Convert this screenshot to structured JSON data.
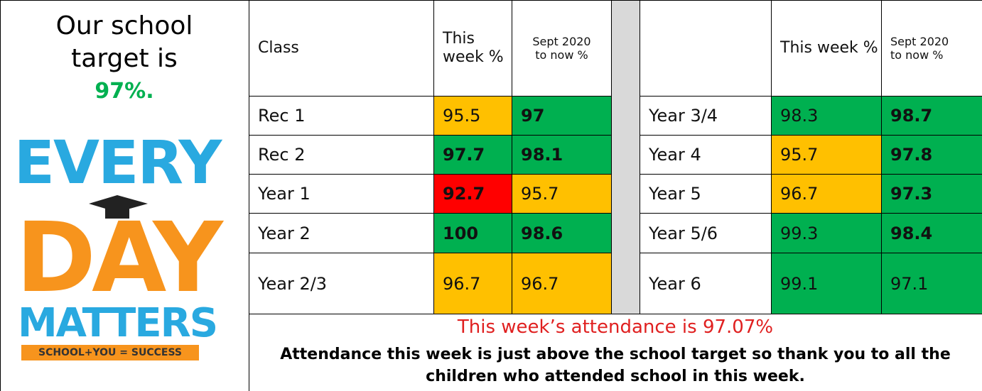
{
  "target": {
    "line1": "Our school",
    "line2": "target is",
    "value": "97%."
  },
  "logo": {
    "every": "EVERY",
    "day": "DAY",
    "matters": "MATTERS",
    "tagline": "SCHOOL+YOU = SUCCESS"
  },
  "table": {
    "left_headers": [
      "Class",
      "This week %",
      "Sept 2020 to now %"
    ],
    "right_headers": [
      "This week %",
      "Sept 2020 to now %"
    ],
    "colors": {
      "green": "#00b050",
      "amber": "#ffc000",
      "red": "#ff0000"
    },
    "left_rows": [
      {
        "class": "Rec 1",
        "week": {
          "value": 95.5,
          "color": "amber",
          "bold": false
        },
        "sept": {
          "value": 97,
          "color": "green",
          "bold": true
        }
      },
      {
        "class": "Rec 2",
        "week": {
          "value": 97.7,
          "color": "green",
          "bold": true
        },
        "sept": {
          "value": 98.1,
          "color": "green",
          "bold": true
        }
      },
      {
        "class": "Year 1",
        "week": {
          "value": 92.7,
          "color": "red",
          "bold": true
        },
        "sept": {
          "value": 95.7,
          "color": "amber",
          "bold": false
        }
      },
      {
        "class": "Year 2",
        "week": {
          "value": 100,
          "color": "green",
          "bold": true
        },
        "sept": {
          "value": 98.6,
          "color": "green",
          "bold": true
        }
      },
      {
        "class": "Year 2/3",
        "week": {
          "value": 96.7,
          "color": "amber",
          "bold": false
        },
        "sept": {
          "value": 96.7,
          "color": "amber",
          "bold": false
        }
      }
    ],
    "right_rows": [
      {
        "class": "Year 3/4",
        "week": {
          "value": 98.3,
          "color": "green",
          "bold": false
        },
        "sept": {
          "value": 98.7,
          "color": "green",
          "bold": true
        }
      },
      {
        "class": "Year 4",
        "week": {
          "value": 95.7,
          "color": "amber",
          "bold": false
        },
        "sept": {
          "value": 97.8,
          "color": "green",
          "bold": true
        }
      },
      {
        "class": "Year 5",
        "week": {
          "value": 96.7,
          "color": "amber",
          "bold": false
        },
        "sept": {
          "value": 97.3,
          "color": "green",
          "bold": true
        }
      },
      {
        "class": "Year 5/6",
        "week": {
          "value": 99.3,
          "color": "green",
          "bold": false
        },
        "sept": {
          "value": 98.4,
          "color": "green",
          "bold": true
        }
      },
      {
        "class": "Year 6",
        "week": {
          "value": 99.1,
          "color": "green",
          "bold": false
        },
        "sept": {
          "value": 97.1,
          "color": "green",
          "bold": false
        }
      }
    ]
  },
  "footer": {
    "headline": "This week’s attendance is 97.07%",
    "message": "Attendance this week is just above the school target so thank you to all the children who attended school in this week."
  }
}
